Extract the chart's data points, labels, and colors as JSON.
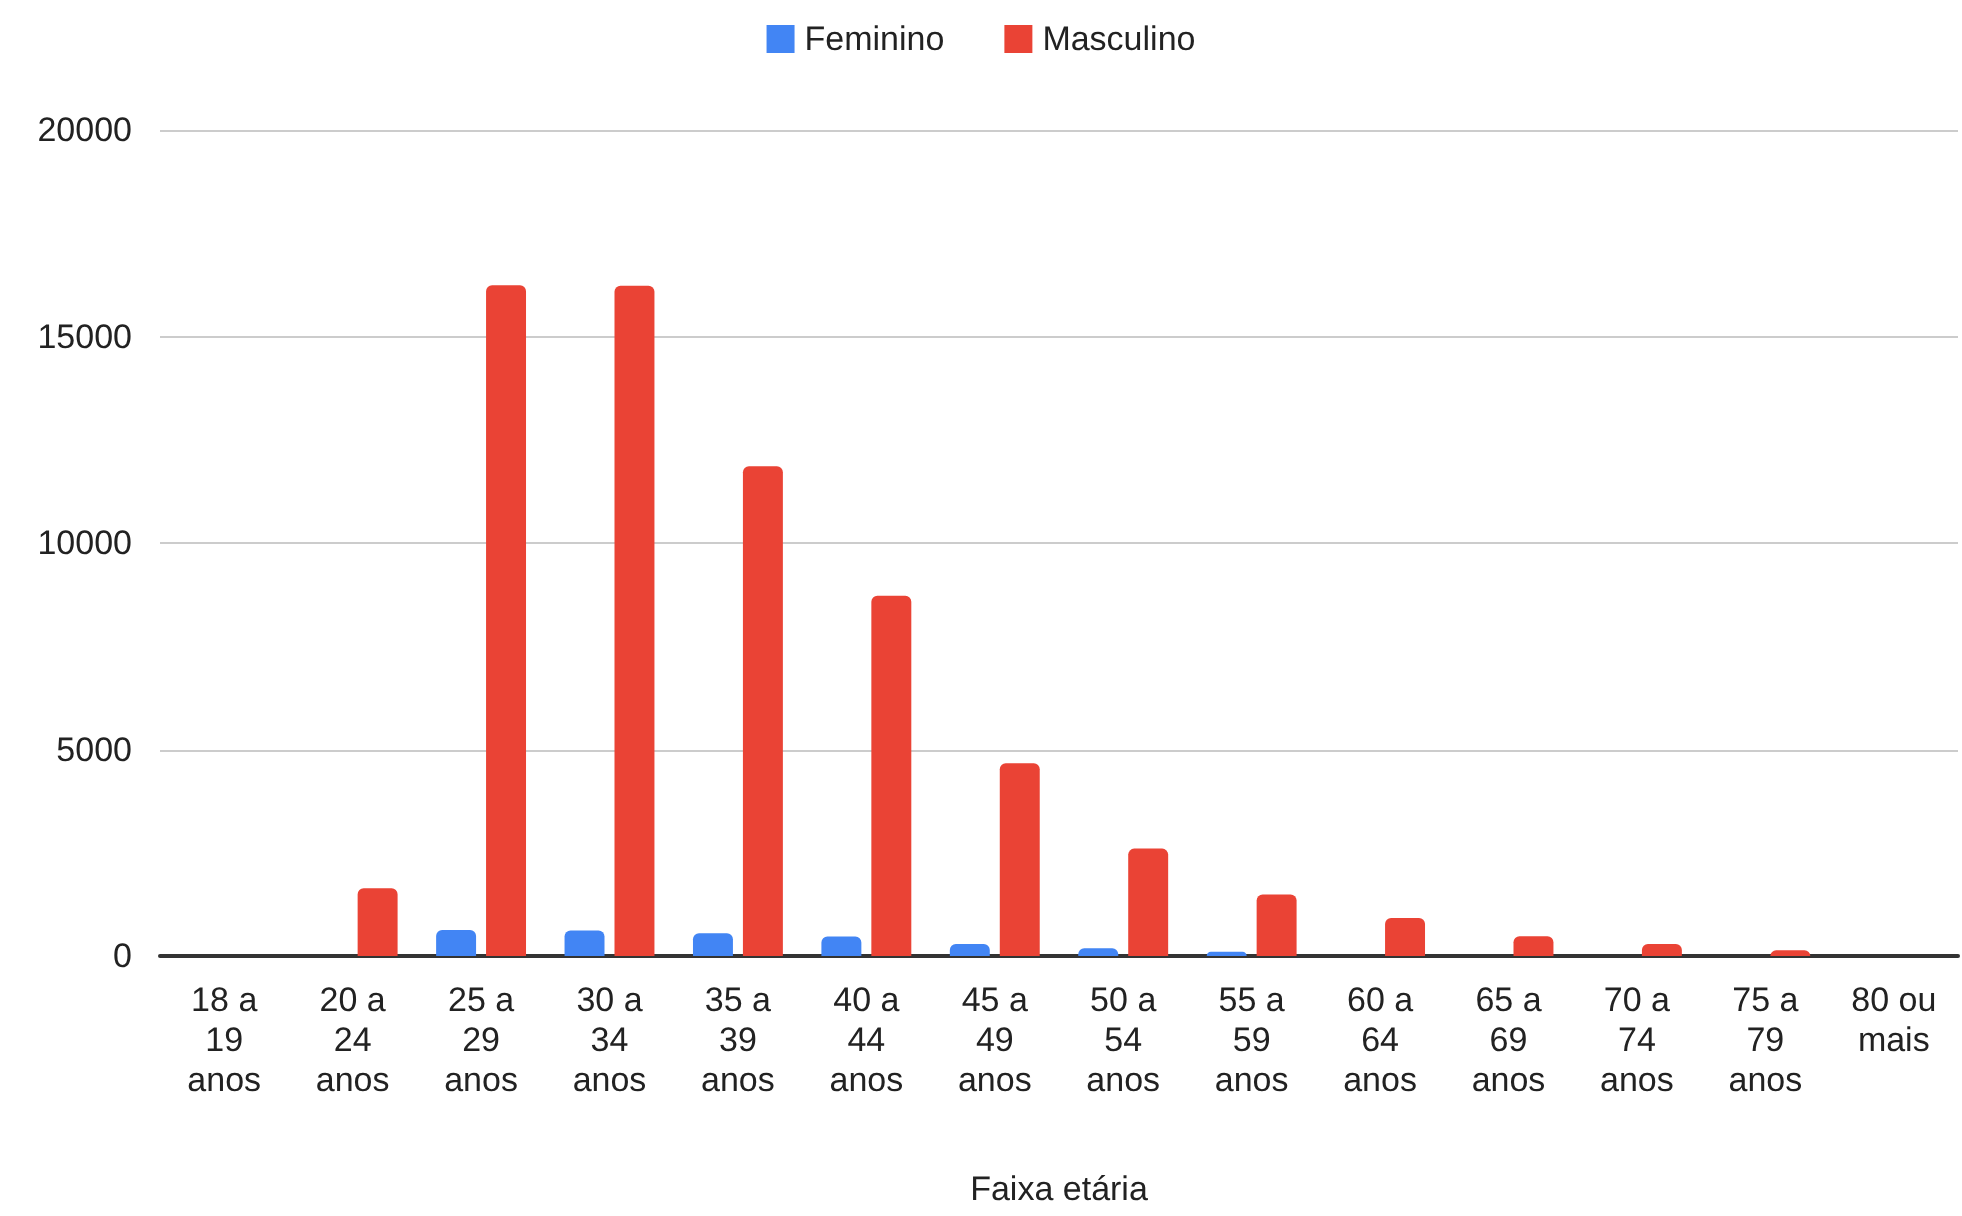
{
  "chart_data": {
    "type": "bar",
    "xlabel": "Faixa etária",
    "categories": [
      "18 a\n19\nanos",
      "20 a\n24\nanos",
      "25 a\n29\nanos",
      "30 a\n34\nanos",
      "35 a\n39\nanos",
      "40 a\n44\nanos",
      "45 a\n49\nanos",
      "50 a\n54\nanos",
      "55 a\n59\nanos",
      "60 a\n64\nanos",
      "65 a\n69\nanos",
      "70 a\n74\nanos",
      "75 a\n79\nanos",
      "80 ou\nmais"
    ],
    "series": [
      {
        "name": "Feminino",
        "color": "#4285f4",
        "values": [
          0,
          0,
          630,
          620,
          550,
          470,
          290,
          190,
          100,
          0,
          0,
          0,
          0,
          0
        ]
      },
      {
        "name": "Masculino",
        "color": "#ea4335",
        "values": [
          0,
          1640,
          16240,
          16230,
          11860,
          8720,
          4670,
          2600,
          1490,
          920,
          480,
          290,
          140,
          0
        ]
      }
    ],
    "ylim": [
      0,
      20000
    ],
    "yticks": [
      0,
      5000,
      10000,
      15000,
      20000
    ],
    "grid": "y",
    "legend": "top"
  }
}
